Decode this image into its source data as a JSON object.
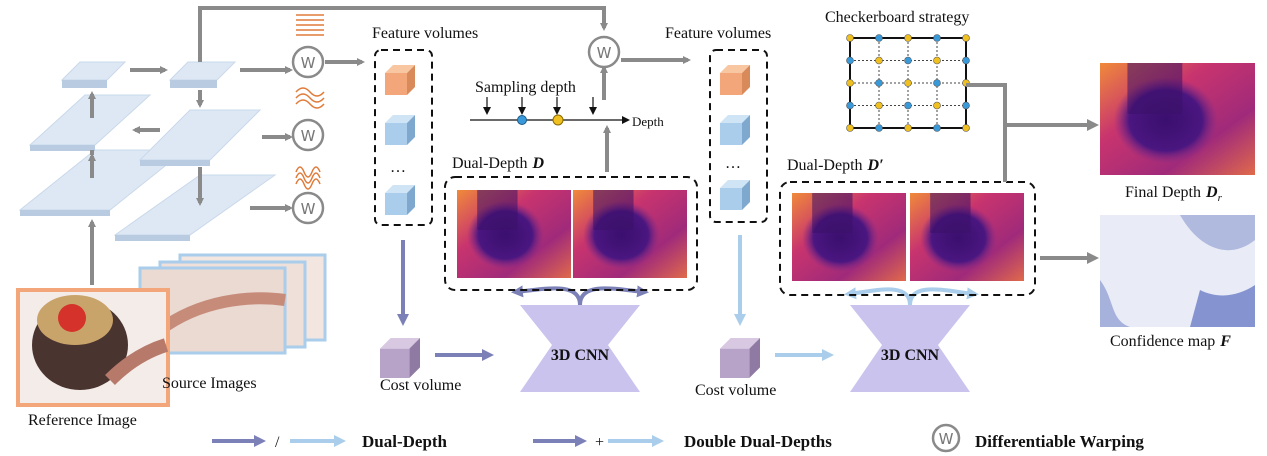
{
  "warp_symbol": "W",
  "inputs": {
    "reference_label": "Reference Image",
    "source_label": "Source Images"
  },
  "stage1": {
    "feature_volumes": "Feature volumes",
    "ellipsis": "…",
    "cost_volume": "Cost volume",
    "cnn": "3D CNN",
    "dual_depth": {
      "label": "Dual-Depth",
      "symbol": "D"
    }
  },
  "sampling": {
    "label": "Sampling depth",
    "axis": "Depth"
  },
  "stage2": {
    "feature_volumes": "Feature volumes",
    "ellipsis": "…",
    "cost_volume": "Cost volume",
    "cnn": "3D CNN",
    "dual_depth": {
      "label": "Dual-Depth",
      "symbol": "D′"
    }
  },
  "checkerboard": {
    "title": "Checkerboard strategy"
  },
  "outputs": {
    "final_depth": {
      "label": "Final Depth",
      "symbol": "D",
      "subscript": "r"
    },
    "confidence": {
      "label": "Confidence map",
      "symbol": "F"
    }
  },
  "legend": [
    {
      "separator": "/",
      "label": "Dual-Depth"
    },
    {
      "separator": "+",
      "label": "Double Dual-Depths"
    },
    {
      "label": "Differentiable Warping"
    }
  ]
}
